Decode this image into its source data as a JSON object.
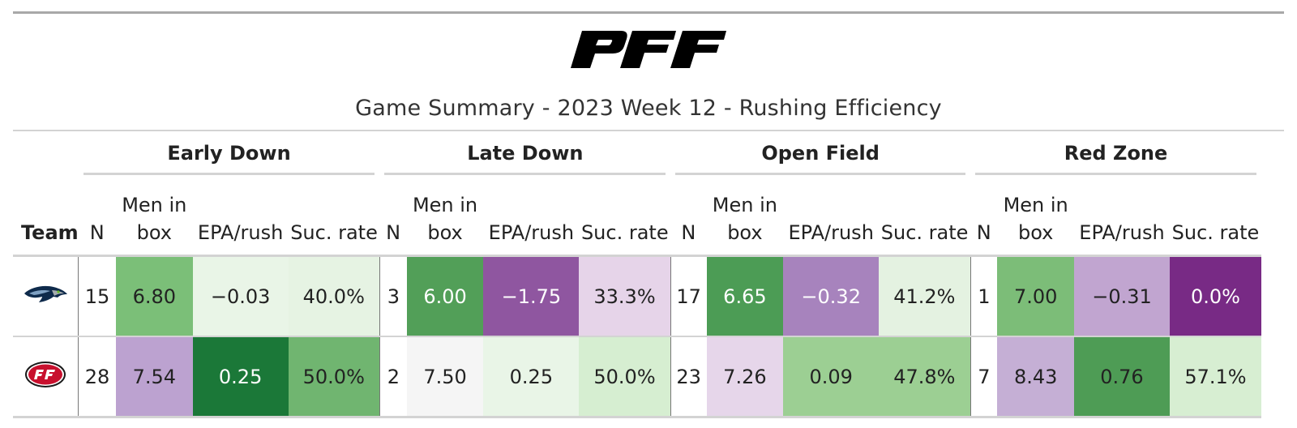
{
  "title": "Game Summary - 2023 Week 12 - Rushing Efficiency",
  "logo": {
    "name": "pff-logo",
    "text": "PFF"
  },
  "chart_data": {
    "type": "table",
    "title": "Game Summary - 2023 Week 12 - Rushing Efficiency",
    "team_header": "Team",
    "groups": [
      "Early Down",
      "Late Down",
      "Open Field",
      "Red Zone"
    ],
    "columns": {
      "n": "N",
      "box_line1": "Men in",
      "box_line2": "box",
      "epa": "EPA/rush",
      "suc": "Suc. rate"
    },
    "rows": [
      {
        "team": "Seahawks",
        "logo": "seahawks-logo",
        "cells": [
          {
            "n": "15",
            "box": "6.80",
            "epa": "−0.03",
            "suc": "40.0%"
          },
          {
            "n": "3",
            "box": "6.00",
            "epa": "−1.75",
            "suc": "33.3%"
          },
          {
            "n": "17",
            "box": "6.65",
            "epa": "−0.32",
            "suc": "41.2%"
          },
          {
            "n": "1",
            "box": "7.00",
            "epa": "−0.31",
            "suc": "0.0%"
          }
        ],
        "fills": [
          {
            "box": "#7bbf78",
            "epa": "#e9f5e7",
            "suc": "#e6f3e3"
          },
          {
            "box": "#529f58",
            "epa": "#8f56a0",
            "suc": "#e6d4e9"
          },
          {
            "box": "#4c9c55",
            "epa": "#a783bd",
            "suc": "#e4f2e1"
          },
          {
            "box": "#7cbd78",
            "epa": "#c1a5d0",
            "suc": "#782a85"
          }
        ]
      },
      {
        "team": "49ers",
        "logo": "49ers-logo",
        "cells": [
          {
            "n": "28",
            "box": "7.54",
            "epa": "0.25",
            "suc": "50.0%"
          },
          {
            "n": "2",
            "box": "7.50",
            "epa": "0.25",
            "suc": "50.0%"
          },
          {
            "n": "23",
            "box": "7.26",
            "epa": "0.09",
            "suc": "47.8%"
          },
          {
            "n": "7",
            "box": "8.43",
            "epa": "0.76",
            "suc": "57.1%"
          }
        ],
        "fills": [
          {
            "box": "#bca2d0",
            "epa": "#1b7838",
            "suc": "#70b570"
          },
          {
            "box": "#f5f5f5",
            "epa": "#e9f5e7",
            "suc": "#d6eed1"
          },
          {
            "box": "#e6d6ea",
            "epa": "#9ccf93",
            "suc": "#9ccf93"
          },
          {
            "box": "#c5afd5",
            "epa": "#4e9c55",
            "suc": "#d7eed2"
          }
        ]
      }
    ],
    "light_text_colors": [
      "#529f58",
      "#8f56a0",
      "#4c9c55",
      "#a783bd",
      "#782a85",
      "#1b7838"
    ]
  }
}
